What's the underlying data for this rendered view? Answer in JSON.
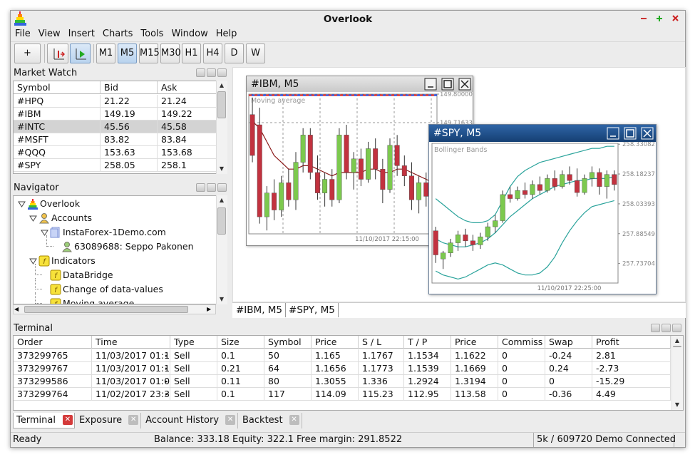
{
  "window": {
    "title": "Overlook"
  },
  "menu": [
    "File",
    "View",
    "Insert",
    "Charts",
    "Tools",
    "Window",
    "Help"
  ],
  "toolbar": {
    "add": "+",
    "timeframes": [
      {
        "label": "M1"
      },
      {
        "label": "M5",
        "active": true
      },
      {
        "label": "M15"
      },
      {
        "label": "M30"
      },
      {
        "label": "H1"
      },
      {
        "label": "H4"
      },
      {
        "label": "D"
      },
      {
        "label": "W"
      }
    ]
  },
  "market_watch": {
    "title": "Market Watch",
    "columns": [
      "Symbol",
      "Bid",
      "Ask"
    ],
    "rows": [
      {
        "cells": [
          "#HPQ",
          "21.22",
          "21.24"
        ]
      },
      {
        "cells": [
          "#IBM",
          "149.19",
          "149.22"
        ]
      },
      {
        "cells": [
          "#INTC",
          "45.56",
          "45.58"
        ],
        "selected": true
      },
      {
        "cells": [
          "#MSFT",
          "83.82",
          "83.84"
        ]
      },
      {
        "cells": [
          "#QQQ",
          "153.63",
          "153.68"
        ]
      },
      {
        "cells": [
          "#SPY",
          "258.05",
          "258.1"
        ]
      }
    ]
  },
  "navigator": {
    "title": "Navigator",
    "items": [
      {
        "label": "Overlook",
        "level": 0,
        "icon": "logo",
        "toggle": true
      },
      {
        "label": "Accounts",
        "level": 1,
        "icon": "accounts",
        "toggle": true
      },
      {
        "label": "InstaForex-1Demo.com",
        "level": 2,
        "icon": "server",
        "toggle": true
      },
      {
        "label": "63089688: Seppo Pakonen",
        "level": 3,
        "icon": "user"
      },
      {
        "label": "Indicators",
        "level": 1,
        "icon": "indicator",
        "toggle": true
      },
      {
        "label": "DataBridge",
        "level": 2,
        "icon": "indicator"
      },
      {
        "label": "Change of data-values",
        "level": 2,
        "icon": "indicator"
      },
      {
        "label": "Moving average",
        "level": 2,
        "icon": "indicator"
      }
    ]
  },
  "charts": [
    {
      "title": "#IBM, M5",
      "indicator": "Moving average",
      "time_label": "11/10/2017 22:15:00",
      "grid": true,
      "ylim": [
        149.39,
        149.8
      ],
      "yticks": [
        {
          "value": 149.8,
          "label": "149.80000"
        },
        {
          "value": 149.71633,
          "label": "149.71633"
        }
      ],
      "up_color": "#7cc94e",
      "down_color": "#c2323f",
      "candles": [
        [
          149.74,
          149.79,
          149.6,
          149.62
        ],
        [
          149.71,
          149.76,
          149.42,
          149.44
        ],
        [
          149.44,
          149.53,
          149.4,
          149.51
        ],
        [
          149.51,
          149.55,
          149.43,
          149.46
        ],
        [
          149.46,
          149.56,
          149.44,
          149.54
        ],
        [
          149.54,
          149.58,
          149.47,
          149.49
        ],
        [
          149.49,
          149.63,
          149.46,
          149.6
        ],
        [
          149.6,
          149.7,
          149.57,
          149.68
        ],
        [
          149.68,
          149.7,
          149.55,
          149.57
        ],
        [
          149.57,
          149.62,
          149.49,
          149.51
        ],
        [
          149.51,
          149.57,
          149.47,
          149.55
        ],
        [
          149.55,
          149.58,
          149.47,
          149.49
        ],
        [
          149.49,
          149.7,
          149.48,
          149.68
        ],
        [
          149.68,
          149.71,
          149.55,
          149.57
        ],
        [
          149.57,
          149.63,
          149.52,
          149.61
        ],
        [
          149.61,
          149.64,
          149.53,
          149.55
        ],
        [
          149.55,
          149.66,
          149.54,
          149.64
        ],
        [
          149.64,
          149.67,
          149.55,
          149.58
        ],
        [
          149.58,
          149.61,
          149.48,
          149.52
        ],
        [
          149.52,
          149.67,
          149.51,
          149.65
        ],
        [
          149.65,
          149.68,
          149.56,
          149.59
        ],
        [
          149.59,
          149.62,
          149.53,
          149.56
        ],
        [
          149.56,
          149.6,
          149.46,
          149.49
        ],
        [
          149.49,
          149.56,
          149.45,
          149.54
        ],
        [
          149.54,
          149.57,
          149.47,
          149.5
        ],
        [
          149.5,
          149.56,
          149.46,
          149.53
        ]
      ],
      "lines": [
        {
          "color": "#8b1a1a",
          "values": [
            149.72,
            149.7,
            149.66,
            149.62,
            149.6,
            149.58,
            149.58,
            149.59,
            149.59,
            149.58,
            149.57,
            149.56,
            149.57,
            149.57,
            149.57,
            149.57,
            149.58,
            149.58,
            149.57,
            149.57,
            149.58,
            149.58,
            149.57,
            149.56,
            149.55,
            149.54
          ]
        }
      ]
    },
    {
      "title": "#SPY, M5",
      "indicator": "Bollinger Bands",
      "time_label": "11/10/2017 22:25:00",
      "grid": false,
      "ylim": [
        257.64,
        258.335
      ],
      "yticks": [
        {
          "value": 258.33082,
          "label": "258.33082"
        },
        {
          "value": 258.18237,
          "label": "258.18237"
        },
        {
          "value": 258.03393,
          "label": "258.03393"
        },
        {
          "value": 257.88549,
          "label": "257.88549"
        },
        {
          "value": 257.73704,
          "label": "257.73704"
        }
      ],
      "up_color": "#7cc94e",
      "down_color": "#c2323f",
      "candles": [
        [
          257.9,
          257.92,
          257.74,
          257.78
        ],
        [
          257.76,
          257.8,
          257.71,
          257.79
        ],
        [
          257.79,
          257.86,
          257.77,
          257.84
        ],
        [
          257.84,
          257.9,
          257.8,
          257.88
        ],
        [
          257.88,
          257.91,
          257.82,
          257.85
        ],
        [
          257.85,
          257.88,
          257.8,
          257.83
        ],
        [
          257.83,
          257.89,
          257.81,
          257.87
        ],
        [
          257.87,
          257.94,
          257.85,
          257.92
        ],
        [
          257.92,
          257.98,
          257.89,
          257.95
        ],
        [
          257.95,
          258.1,
          257.94,
          258.08
        ],
        [
          258.08,
          258.12,
          258.04,
          258.06
        ],
        [
          258.06,
          258.12,
          258.05,
          258.1
        ],
        [
          258.1,
          258.14,
          258.06,
          258.08
        ],
        [
          258.08,
          258.15,
          258.06,
          258.13
        ],
        [
          258.13,
          258.17,
          258.08,
          258.1
        ],
        [
          258.1,
          258.18,
          258.09,
          258.16
        ],
        [
          258.16,
          258.2,
          258.1,
          258.12
        ],
        [
          258.12,
          258.2,
          258.11,
          258.18
        ],
        [
          258.18,
          258.22,
          258.13,
          258.15
        ],
        [
          258.15,
          258.21,
          258.07,
          258.09
        ],
        [
          258.09,
          258.18,
          258.08,
          258.16
        ],
        [
          258.16,
          258.22,
          258.12,
          258.19
        ],
        [
          258.19,
          258.21,
          258.08,
          258.12
        ],
        [
          258.12,
          258.2,
          258.06,
          258.18
        ],
        [
          258.18,
          258.2,
          258.1,
          258.13
        ]
      ],
      "lines": [
        {
          "color": "#2aa39b",
          "values": [
            258.06,
            258.03,
            258.0,
            257.97,
            257.95,
            257.94,
            257.94,
            257.95,
            257.98,
            258.05,
            258.12,
            258.17,
            258.2,
            258.22,
            258.24,
            258.25,
            258.26,
            258.27,
            258.28,
            258.29,
            258.3,
            258.31,
            258.31,
            258.32,
            258.32
          ]
        },
        {
          "color": "#2aa39b",
          "values": [
            257.86,
            257.84,
            257.83,
            257.82,
            257.82,
            257.83,
            257.84,
            257.86,
            257.89,
            257.93,
            257.97,
            258.0,
            258.03,
            258.06,
            258.08,
            258.1,
            258.12,
            258.13,
            258.14,
            258.15,
            258.15,
            258.16,
            258.16,
            258.16,
            258.17
          ]
        },
        {
          "color": "#2aa39b",
          "values": [
            257.7,
            257.68,
            257.67,
            257.66,
            257.67,
            257.69,
            257.71,
            257.73,
            257.74,
            257.73,
            257.71,
            257.69,
            257.68,
            257.68,
            257.69,
            257.72,
            257.77,
            257.84,
            257.9,
            257.95,
            257.99,
            258.02,
            258.03,
            258.04,
            258.05
          ]
        }
      ]
    }
  ],
  "chart_tabs": [
    "#IBM, M5",
    "#SPY, M5"
  ],
  "terminal": {
    "title": "Terminal",
    "columns": [
      "Order",
      "Time",
      "Type",
      "Size",
      "Symbol",
      "Price",
      "S / L",
      "T / P",
      "Price",
      "Commiss",
      "Swap",
      "Profit"
    ],
    "rows": [
      [
        "373299765",
        "11/03/2017 01:1",
        "Sell",
        "0.1",
        "50",
        "1.165",
        "1.1767",
        "1.1534",
        "1.1622",
        "0",
        "-0.24",
        "2.81"
      ],
      [
        "373299767",
        "11/03/2017 01:1",
        "Sell",
        "0.21",
        "64",
        "1.1656",
        "1.1773",
        "1.1539",
        "1.1669",
        "0",
        "0.24",
        "-2.73"
      ],
      [
        "373299586",
        "11/03/2017 01:0",
        "Sell",
        "0.11",
        "80",
        "1.3055",
        "1.336",
        "1.2924",
        "1.3194",
        "0",
        "0",
        "-15.29"
      ],
      [
        "373299764",
        "11/02/2017 23:3",
        "Sell",
        "0.1",
        "117",
        "114.09",
        "115.23",
        "112.95",
        "113.58",
        "0",
        "-0.36",
        "4.49"
      ]
    ],
    "tabs": [
      {
        "label": "Terminal",
        "active": true
      },
      {
        "label": "Exposure"
      },
      {
        "label": "Account History"
      },
      {
        "label": "Backtest"
      }
    ]
  },
  "status": {
    "left": "Ready",
    "center": "Balance: 333.18 Equity: 322.1 Free margin: 291.8522",
    "right": "5k / 609720 Demo Connected"
  }
}
